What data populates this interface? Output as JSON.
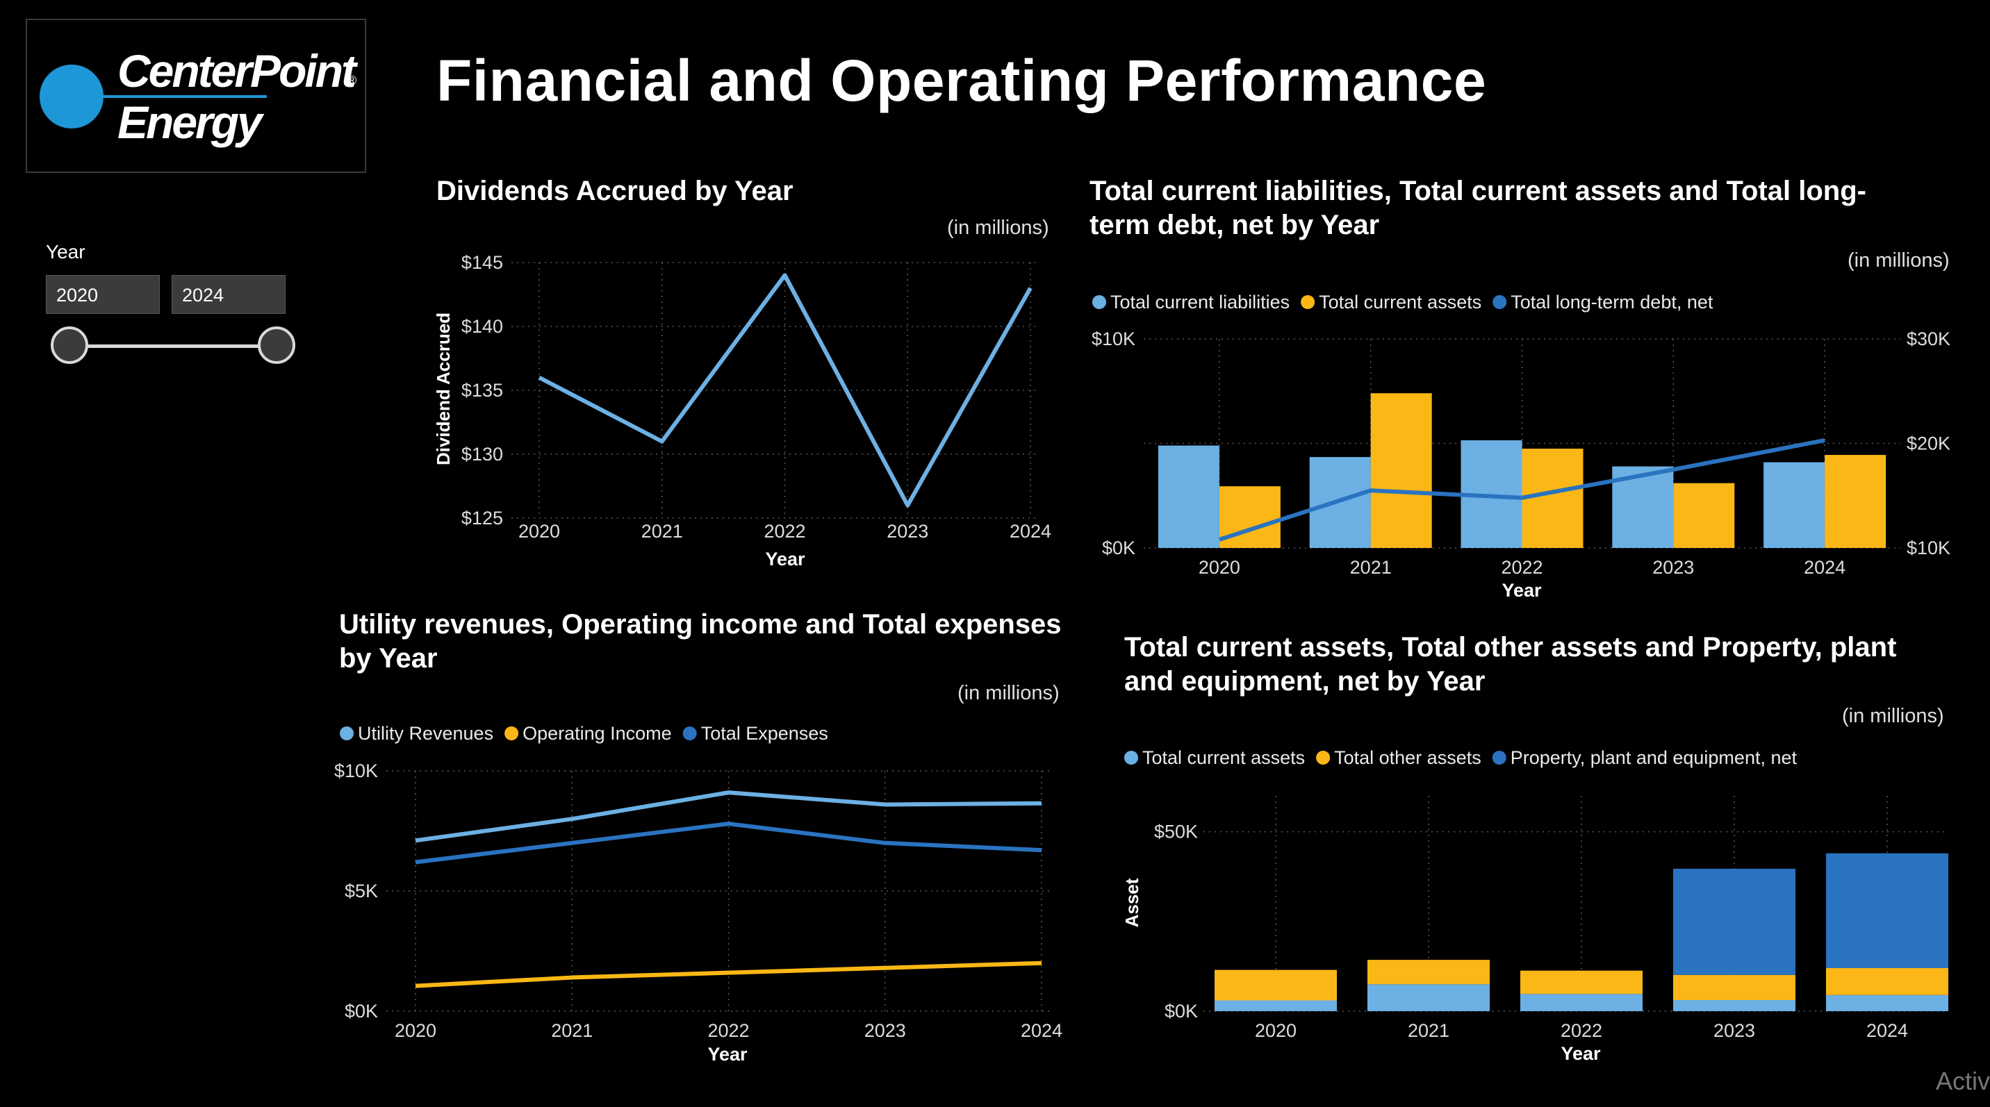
{
  "page": {
    "title": "Financial and Operating Performance"
  },
  "logo": {
    "line1": "CenterPoint",
    "line2": "Energy",
    "registered": "®",
    "colors": {
      "circle": "#1e97d8"
    }
  },
  "slicer": {
    "label": "Year",
    "start_value": "2020",
    "end_value": "2024"
  },
  "colors": {
    "light_blue": "#6cb0e4",
    "gold": "#fbb716",
    "dark_blue": "#2a73c0",
    "grid": "#5a5a5a",
    "background": "#000000"
  },
  "watermark": "Activ",
  "chart_data": [
    {
      "id": "dividends",
      "type": "line",
      "title": "Dividends Accrued by Year",
      "unit_note": "(in millions)",
      "xlabel": "Year",
      "ylabel": "Dividend Accrued",
      "categories": [
        "2020",
        "2021",
        "2022",
        "2023",
        "2024"
      ],
      "series": [
        {
          "values": [
            136,
            131,
            144,
            126,
            143
          ]
        }
      ],
      "ylim": [
        125,
        145
      ],
      "yticks": [
        "$125",
        "$130",
        "$135",
        "$140",
        "$145"
      ],
      "grid": true
    },
    {
      "id": "liabilities",
      "type": "bar",
      "title": "Total current liabilities, Total current assets and Total long-term debt, net by Year",
      "unit_note": "(in millions)",
      "xlabel": "Year",
      "categories": [
        "2020",
        "2021",
        "2022",
        "2023",
        "2024"
      ],
      "legend": [
        "Total current liabilities",
        "Total current assets",
        "Total long-term debt, net"
      ],
      "legend_position": "top-left",
      "series": [
        {
          "name": "Total current liabilities",
          "kind": "bar",
          "axis": "left",
          "values": [
            4900,
            4350,
            5150,
            3900,
            4100
          ]
        },
        {
          "name": "Total current assets",
          "kind": "bar",
          "axis": "left",
          "values": [
            2950,
            7400,
            4750,
            3100,
            4450
          ]
        },
        {
          "name": "Total long-term debt, net",
          "kind": "line",
          "axis": "right",
          "values": [
            10800,
            15500,
            14800,
            17500,
            20300
          ]
        }
      ],
      "ylim_left": [
        0,
        10000
      ],
      "yticks_left": [
        "$0K",
        "$10K"
      ],
      "ylim_right": [
        10000,
        30000
      ],
      "yticks_right": [
        "$10K",
        "$20K",
        "$30K"
      ],
      "grid": true
    },
    {
      "id": "utility",
      "type": "line",
      "title": "Utility revenues, Operating income and Total expenses by Year",
      "unit_note": "(in millions)",
      "xlabel": "Year",
      "categories": [
        "2020",
        "2021",
        "2022",
        "2023",
        "2024"
      ],
      "legend": [
        "Utility Revenues",
        "Operating Income",
        "Total Expenses"
      ],
      "legend_position": "top-left",
      "series": [
        {
          "name": "Utility Revenues",
          "values": [
            7100,
            8000,
            9100,
            8600,
            8650
          ]
        },
        {
          "name": "Operating Income",
          "values": [
            1050,
            1400,
            1600,
            1800,
            2000
          ]
        },
        {
          "name": "Total Expenses",
          "values": [
            6200,
            7000,
            7800,
            7000,
            6700
          ]
        }
      ],
      "ylim": [
        0,
        10000
      ],
      "yticks": [
        "$0K",
        "$5K",
        "$10K"
      ],
      "grid": true
    },
    {
      "id": "assets",
      "type": "bar",
      "stacked": true,
      "title": "Total current assets, Total other assets and Property, plant and equipment, net by Year",
      "unit_note": "(in millions)",
      "xlabel": "Year",
      "ylabel": "Asset",
      "categories": [
        "2020",
        "2021",
        "2022",
        "2023",
        "2024"
      ],
      "legend": [
        "Total current assets",
        "Total other assets",
        "Property, plant and equipment, net"
      ],
      "legend_position": "top-left",
      "series": [
        {
          "name": "Total current assets",
          "values": [
            3000,
            7500,
            4800,
            3100,
            4500
          ]
        },
        {
          "name": "Total other assets",
          "values": [
            8500,
            6800,
            6500,
            7000,
            7500
          ]
        },
        {
          "name": "Property, plant and equipment, net",
          "values": [
            0,
            0,
            0,
            29600,
            32000
          ]
        }
      ],
      "ylim": [
        0,
        60000
      ],
      "yticks": [
        "$0K",
        "$50K"
      ],
      "grid": true
    }
  ]
}
